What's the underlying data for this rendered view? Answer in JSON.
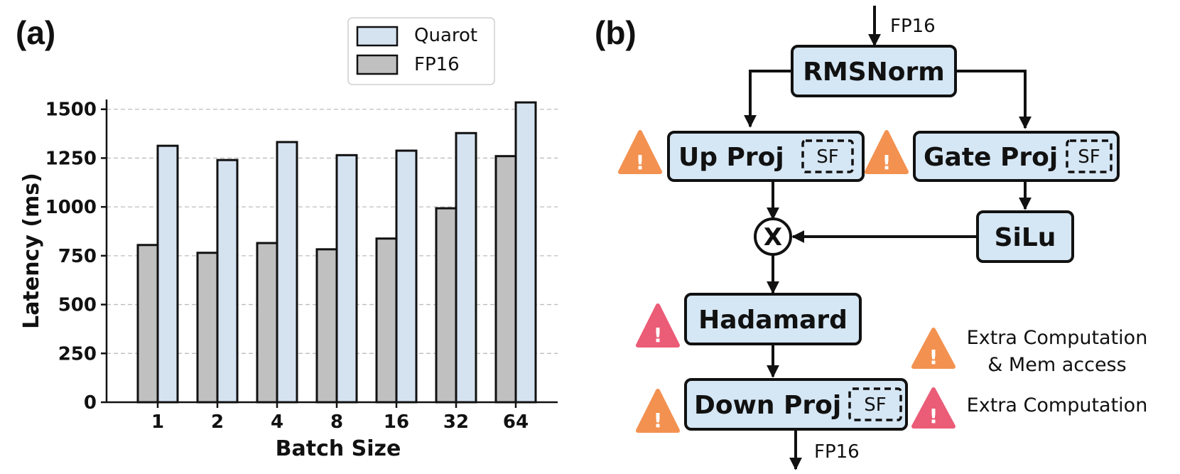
{
  "panel_a_label": "(a)",
  "panel_b_label": "(b)",
  "chart_data": {
    "type": "bar",
    "title": "",
    "xlabel": "Batch Size",
    "ylabel": "Latency (ms)",
    "categories": [
      "1",
      "2",
      "4",
      "8",
      "16",
      "32",
      "64"
    ],
    "series": [
      {
        "name": "FP16",
        "values": [
          805,
          765,
          815,
          783,
          838,
          993,
          1260
        ],
        "color": "#c0c0c0"
      },
      {
        "name": "Quarot",
        "values": [
          1313,
          1240,
          1332,
          1265,
          1288,
          1378,
          1535
        ],
        "color": "#d5e3f1"
      }
    ],
    "legend_order": [
      "Quarot",
      "FP16"
    ],
    "legend_position": "top-center",
    "ylim": [
      0,
      1550
    ],
    "yticks": [
      0,
      250,
      500,
      750,
      1000,
      1250,
      1500
    ],
    "grid": "y-dashed"
  },
  "diagram": {
    "input_label": "FP16",
    "output_label": "FP16",
    "rmsnorm": "RMSNorm",
    "up_proj": "Up Proj",
    "gate_proj": "Gate Proj",
    "silu": "SiLu",
    "multiply_symbol": "X",
    "hadamard": "Hadamard",
    "down_proj": "Down Proj",
    "sf": "SF",
    "warning_glyph": "!",
    "box_fill": "#d5e6f4",
    "orange_warning_color": "#f39150",
    "red_warning_color": "#eb5c76",
    "legend": {
      "orange_line1": "Extra Computation",
      "orange_line2": "& Mem access",
      "red": "Extra Computation"
    }
  }
}
